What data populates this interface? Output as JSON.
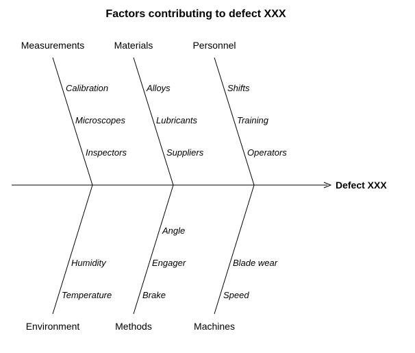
{
  "title": "Factors contributing to defect XXX",
  "effect": "Defect XXX",
  "top_categories": [
    {
      "name": "Measurements",
      "causes": [
        "Calibration",
        "Microscopes",
        "Inspectors"
      ]
    },
    {
      "name": "Materials",
      "causes": [
        "Alloys",
        "Lubricants",
        "Suppliers"
      ]
    },
    {
      "name": "Personnel",
      "causes": [
        "Shifts",
        "Training",
        "Operators"
      ]
    }
  ],
  "bottom_categories": [
    {
      "name": "Environment",
      "causes": [
        "Humidity",
        "Temperature"
      ]
    },
    {
      "name": "Methods",
      "causes": [
        "Angle",
        "Engager",
        "Brake"
      ]
    },
    {
      "name": "Machines",
      "causes": [
        "Blade wear",
        "Speed"
      ]
    }
  ]
}
